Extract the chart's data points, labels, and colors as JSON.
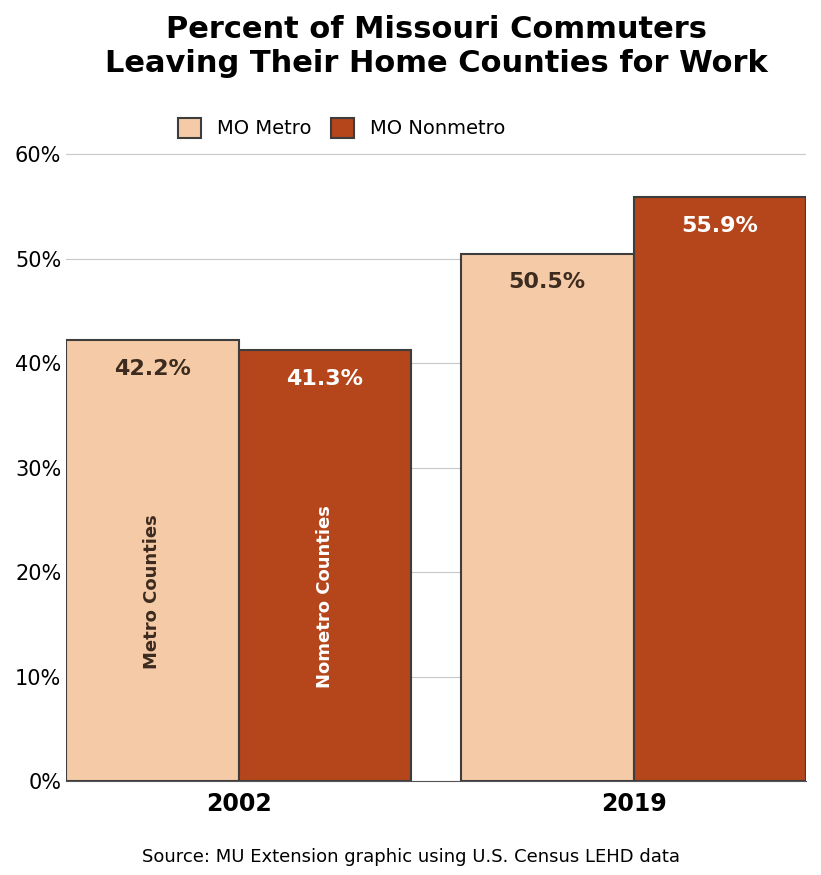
{
  "title": "Percent of Missouri Commuters\nLeaving Their Home Counties for Work",
  "title_fontsize": 22,
  "title_fontweight": "bold",
  "source_text": "Source: MU Extension graphic using U.S. Census LEHD data",
  "source_fontsize": 13,
  "years": [
    "2002",
    "2019"
  ],
  "metro_values": [
    42.2,
    50.5
  ],
  "nonmetro_values": [
    41.3,
    55.9
  ],
  "metro_color": "#F5CBA7",
  "nonmetro_color": "#B5451B",
  "metro_edge_color": "#3D3D3D",
  "nonmetro_edge_color": "#3D3D3D",
  "metro_label_color": "#3D2B1F",
  "nonmetro_label_color": "#FFFFFF",
  "bar_width": 0.38,
  "bar_gap": 0.0,
  "ylim": [
    0,
    65
  ],
  "yticks": [
    0,
    10,
    20,
    30,
    40,
    50,
    60
  ],
  "ytick_labels": [
    "0%",
    "10%",
    "20%",
    "30%",
    "40%",
    "50%",
    "60%"
  ],
  "legend_metro_label": "MO Metro",
  "legend_nonmetro_label": "MO Nonmetro",
  "value_fontsize": 16,
  "value_fontweight": "bold",
  "bar_label_fontsize": 13,
  "bar_label_color_metro": "#3D2B1F",
  "bar_label_color_nonmetro": "#FFFFFF",
  "tick_fontsize": 15,
  "xlabel_fontsize": 17,
  "xlabel_fontweight": "bold",
  "background_color": "#FFFFFF",
  "grid_color": "#C8C8C8",
  "legend_fontsize": 14,
  "group_centers": [
    0.38,
    1.25
  ]
}
